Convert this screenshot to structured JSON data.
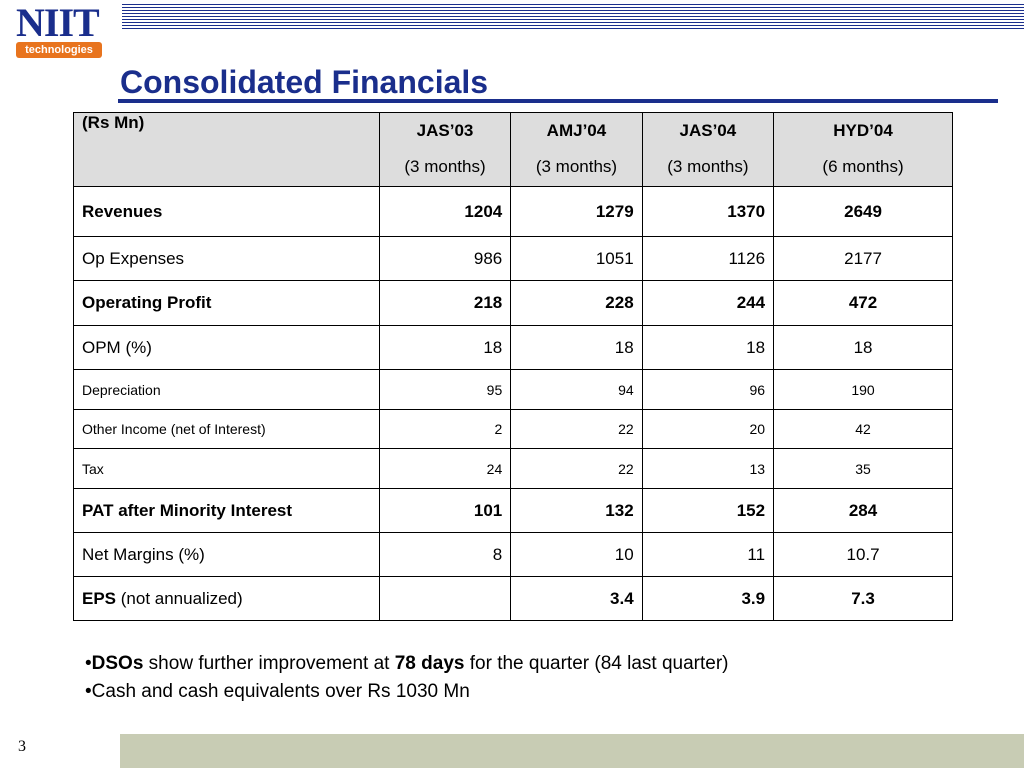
{
  "logo": {
    "brand": "NIIT",
    "tagline": "technologies"
  },
  "slide": {
    "title": "Consolidated Financials",
    "page_number": "3"
  },
  "table": {
    "unit_label": "(Rs Mn)",
    "columns": [
      {
        "period": "JAS’03",
        "duration": "(3 months)"
      },
      {
        "period": "AMJ’04",
        "duration": "(3 months)"
      },
      {
        "period": "JAS’04",
        "duration": "(3 months)"
      },
      {
        "period": "HYD’04",
        "duration": "(6 months)"
      }
    ],
    "rows": [
      {
        "label": "Revenues",
        "values": [
          "1204",
          "1279",
          "1370",
          "2649"
        ]
      },
      {
        "label": "Op Expenses",
        "values": [
          "986",
          "1051",
          "1126",
          "2177"
        ]
      },
      {
        "label": "Operating Profit",
        "values": [
          "218",
          "228",
          "244",
          "472"
        ]
      },
      {
        "label": "OPM (%)",
        "values": [
          "18",
          "18",
          "18",
          "18"
        ]
      },
      {
        "label": "Depreciation",
        "values": [
          "95",
          "94",
          "96",
          "190"
        ]
      },
      {
        "label": "Other Income (net of Interest)",
        "values": [
          "2",
          "22",
          "20",
          "42"
        ]
      },
      {
        "label": "Tax",
        "values": [
          "24",
          "22",
          "13",
          "35"
        ]
      },
      {
        "label": "PAT after Minority Interest",
        "values": [
          "101",
          "132",
          "152",
          "284"
        ]
      },
      {
        "label": "Net Margins (%)",
        "values": [
          "8",
          "10",
          "11",
          "10.7"
        ]
      },
      {
        "label": "EPS",
        "label_suffix": " (not annualized)",
        "values": [
          "",
          "3.4",
          "3.9",
          "7.3"
        ]
      }
    ]
  },
  "bullets": {
    "b1": {
      "marker": "•",
      "bold1": "DSOs",
      "text1": " show further improvement at ",
      "bold2": "78 days",
      "text2": " for the quarter (84 last quarter)"
    },
    "b2": {
      "marker": "•",
      "text": "Cash and cash equivalents over Rs 1030 Mn"
    }
  }
}
